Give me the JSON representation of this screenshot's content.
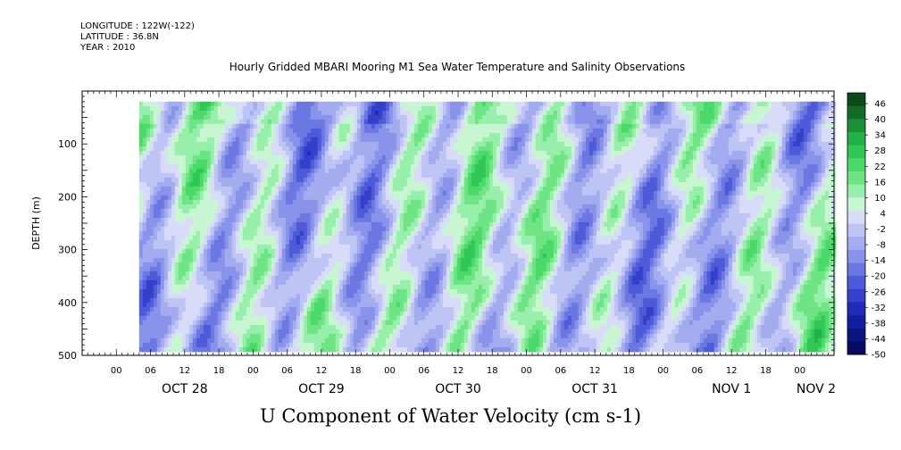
{
  "header": {
    "longitude": "LONGITUDE : 122W(-122)",
    "latitude": "LATITUDE : 36.8N",
    "year": "YEAR : 2010",
    "title": "Hourly Gridded MBARI Mooring M1 Sea Water Temperature and Salinity Observations"
  },
  "chart_data": {
    "type": "heatmap",
    "title": "Hourly Gridded MBARI Mooring M1 Sea Water Temperature and Salinity Observations",
    "variable_label": "U Component of Water Velocity (cm s-1)",
    "ylabel": "DEPTH (m)",
    "y_axis": {
      "reversed": true,
      "ylim": [
        0,
        500
      ],
      "ticks": [
        100,
        200,
        300,
        400,
        500
      ],
      "data_range": [
        20,
        485
      ]
    },
    "x_axis": {
      "xlim_hours": [
        -6,
        126
      ],
      "data_start_hours": 4,
      "data_end_hours": 126,
      "hour_ticks": [
        "00",
        "06",
        "12",
        "18",
        "00",
        "06",
        "12",
        "18",
        "00",
        "06",
        "12",
        "18",
        "00",
        "06",
        "12",
        "18",
        "00",
        "06",
        "12",
        "18",
        "00"
      ],
      "day_labels": [
        "OCT 28",
        "OCT 29",
        "OCT 30",
        "OCT 31",
        "NOV  1",
        "NOV  2"
      ]
    },
    "colorbar": {
      "levels": [
        "46",
        "40",
        "34",
        "28",
        "22",
        "16",
        "10",
        "4",
        "-2",
        "-8",
        "-14",
        "-20",
        "-26",
        "-32",
        "-38",
        "-44",
        "-50"
      ],
      "colors": [
        "#0c4a1d",
        "#136b2a",
        "#1a8f38",
        "#23b046",
        "#31c756",
        "#4bd96a",
        "#6ee485",
        "#97efaa",
        "#c8f6d2",
        "#d9dcf9",
        "#bec4f4",
        "#a3acef",
        "#8893e9",
        "#6c78e2",
        "#4e5ad7",
        "#3340c9",
        "#1f2bb8",
        "#131f9e",
        "#0a1580",
        "#050c60"
      ]
    },
    "grid": false
  }
}
